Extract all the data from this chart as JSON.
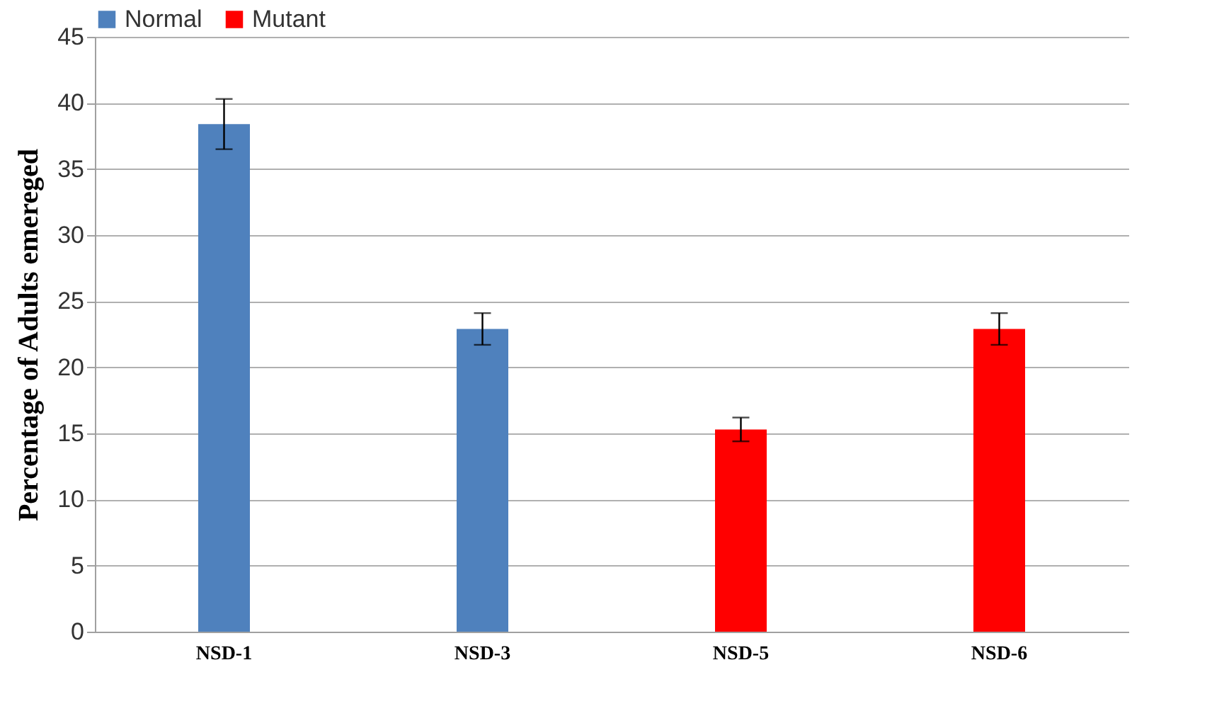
{
  "chart_data": {
    "type": "bar",
    "ylabel": "Percentage of Adults emereged",
    "categories": [
      "NSD-1",
      "NSD-3",
      "NSD-5",
      "NSD-6"
    ],
    "series": [
      {
        "name": "Normal",
        "color": "#4f81bd",
        "values": [
          38.4,
          22.9,
          null,
          null
        ],
        "errors": [
          1.9,
          1.2,
          null,
          null
        ]
      },
      {
        "name": "Mutant",
        "color": "#ff0000",
        "values": [
          null,
          null,
          15.3,
          22.9
        ],
        "errors": [
          null,
          null,
          0.9,
          1.2
        ]
      }
    ],
    "ylim": [
      0,
      45
    ],
    "yticks": [
      0,
      5,
      10,
      15,
      20,
      25,
      30,
      35,
      40,
      45
    ],
    "grid": "y",
    "legend": "top"
  }
}
